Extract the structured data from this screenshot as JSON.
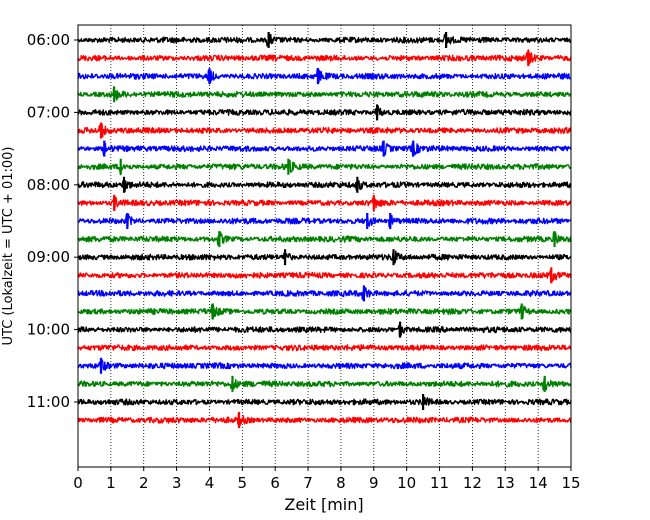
{
  "chart_data": {
    "type": "line",
    "subtype": "helicorder",
    "title": "",
    "xlabel": "Zeit  [min]",
    "ylabel": "UTC (Lokalzeit = UTC + 01:00)",
    "xlim": [
      0,
      15
    ],
    "x_ticks": [
      "0",
      "1",
      "2",
      "3",
      "4",
      "5",
      "6",
      "7",
      "8",
      "9",
      "10",
      "11",
      "12",
      "13",
      "14",
      "15"
    ],
    "x_grid": "dotted vertical lines at every minute",
    "trace_interval_minutes": 15,
    "trace_color_cycle": [
      "#000000",
      "#ff0000",
      "#0000ff",
      "#008000"
    ],
    "y_ticks": [
      {
        "label": "06:00",
        "row": 0
      },
      {
        "label": "07:00",
        "row": 4
      },
      {
        "label": "08:00",
        "row": 8
      },
      {
        "label": "09:00",
        "row": 12
      },
      {
        "label": "10:00",
        "row": 16
      },
      {
        "label": "11:00",
        "row": 20
      }
    ],
    "series": [
      {
        "values": [
          5.8,
          11.2
        ]
      },
      {
        "values": [
          13.7
        ]
      },
      {
        "values": [
          4.0,
          7.3
        ]
      },
      {
        "values": [
          1.1
        ]
      },
      {
        "values": [
          9.1
        ]
      },
      {
        "values": [
          0.7
        ]
      },
      {
        "values": [
          0.8,
          9.3,
          10.2
        ]
      },
      {
        "values": [
          1.3,
          6.4
        ]
      },
      {
        "values": [
          1.4,
          8.5
        ]
      },
      {
        "values": [
          1.1,
          9.0
        ]
      },
      {
        "values": [
          1.5,
          8.8,
          9.5
        ]
      },
      {
        "values": [
          4.3,
          14.5
        ]
      },
      {
        "values": [
          6.3,
          9.6
        ]
      },
      {
        "values": [
          14.4
        ]
      },
      {
        "values": [
          8.7
        ]
      },
      {
        "values": [
          4.1,
          13.5
        ]
      },
      {
        "values": [
          9.8
        ]
      },
      {
        "values": []
      },
      {
        "values": [
          0.7
        ]
      },
      {
        "values": [
          4.7,
          14.2
        ]
      },
      {
        "values": [
          10.5
        ]
      },
      {
        "values": [
          4.9
        ]
      }
    ]
  }
}
